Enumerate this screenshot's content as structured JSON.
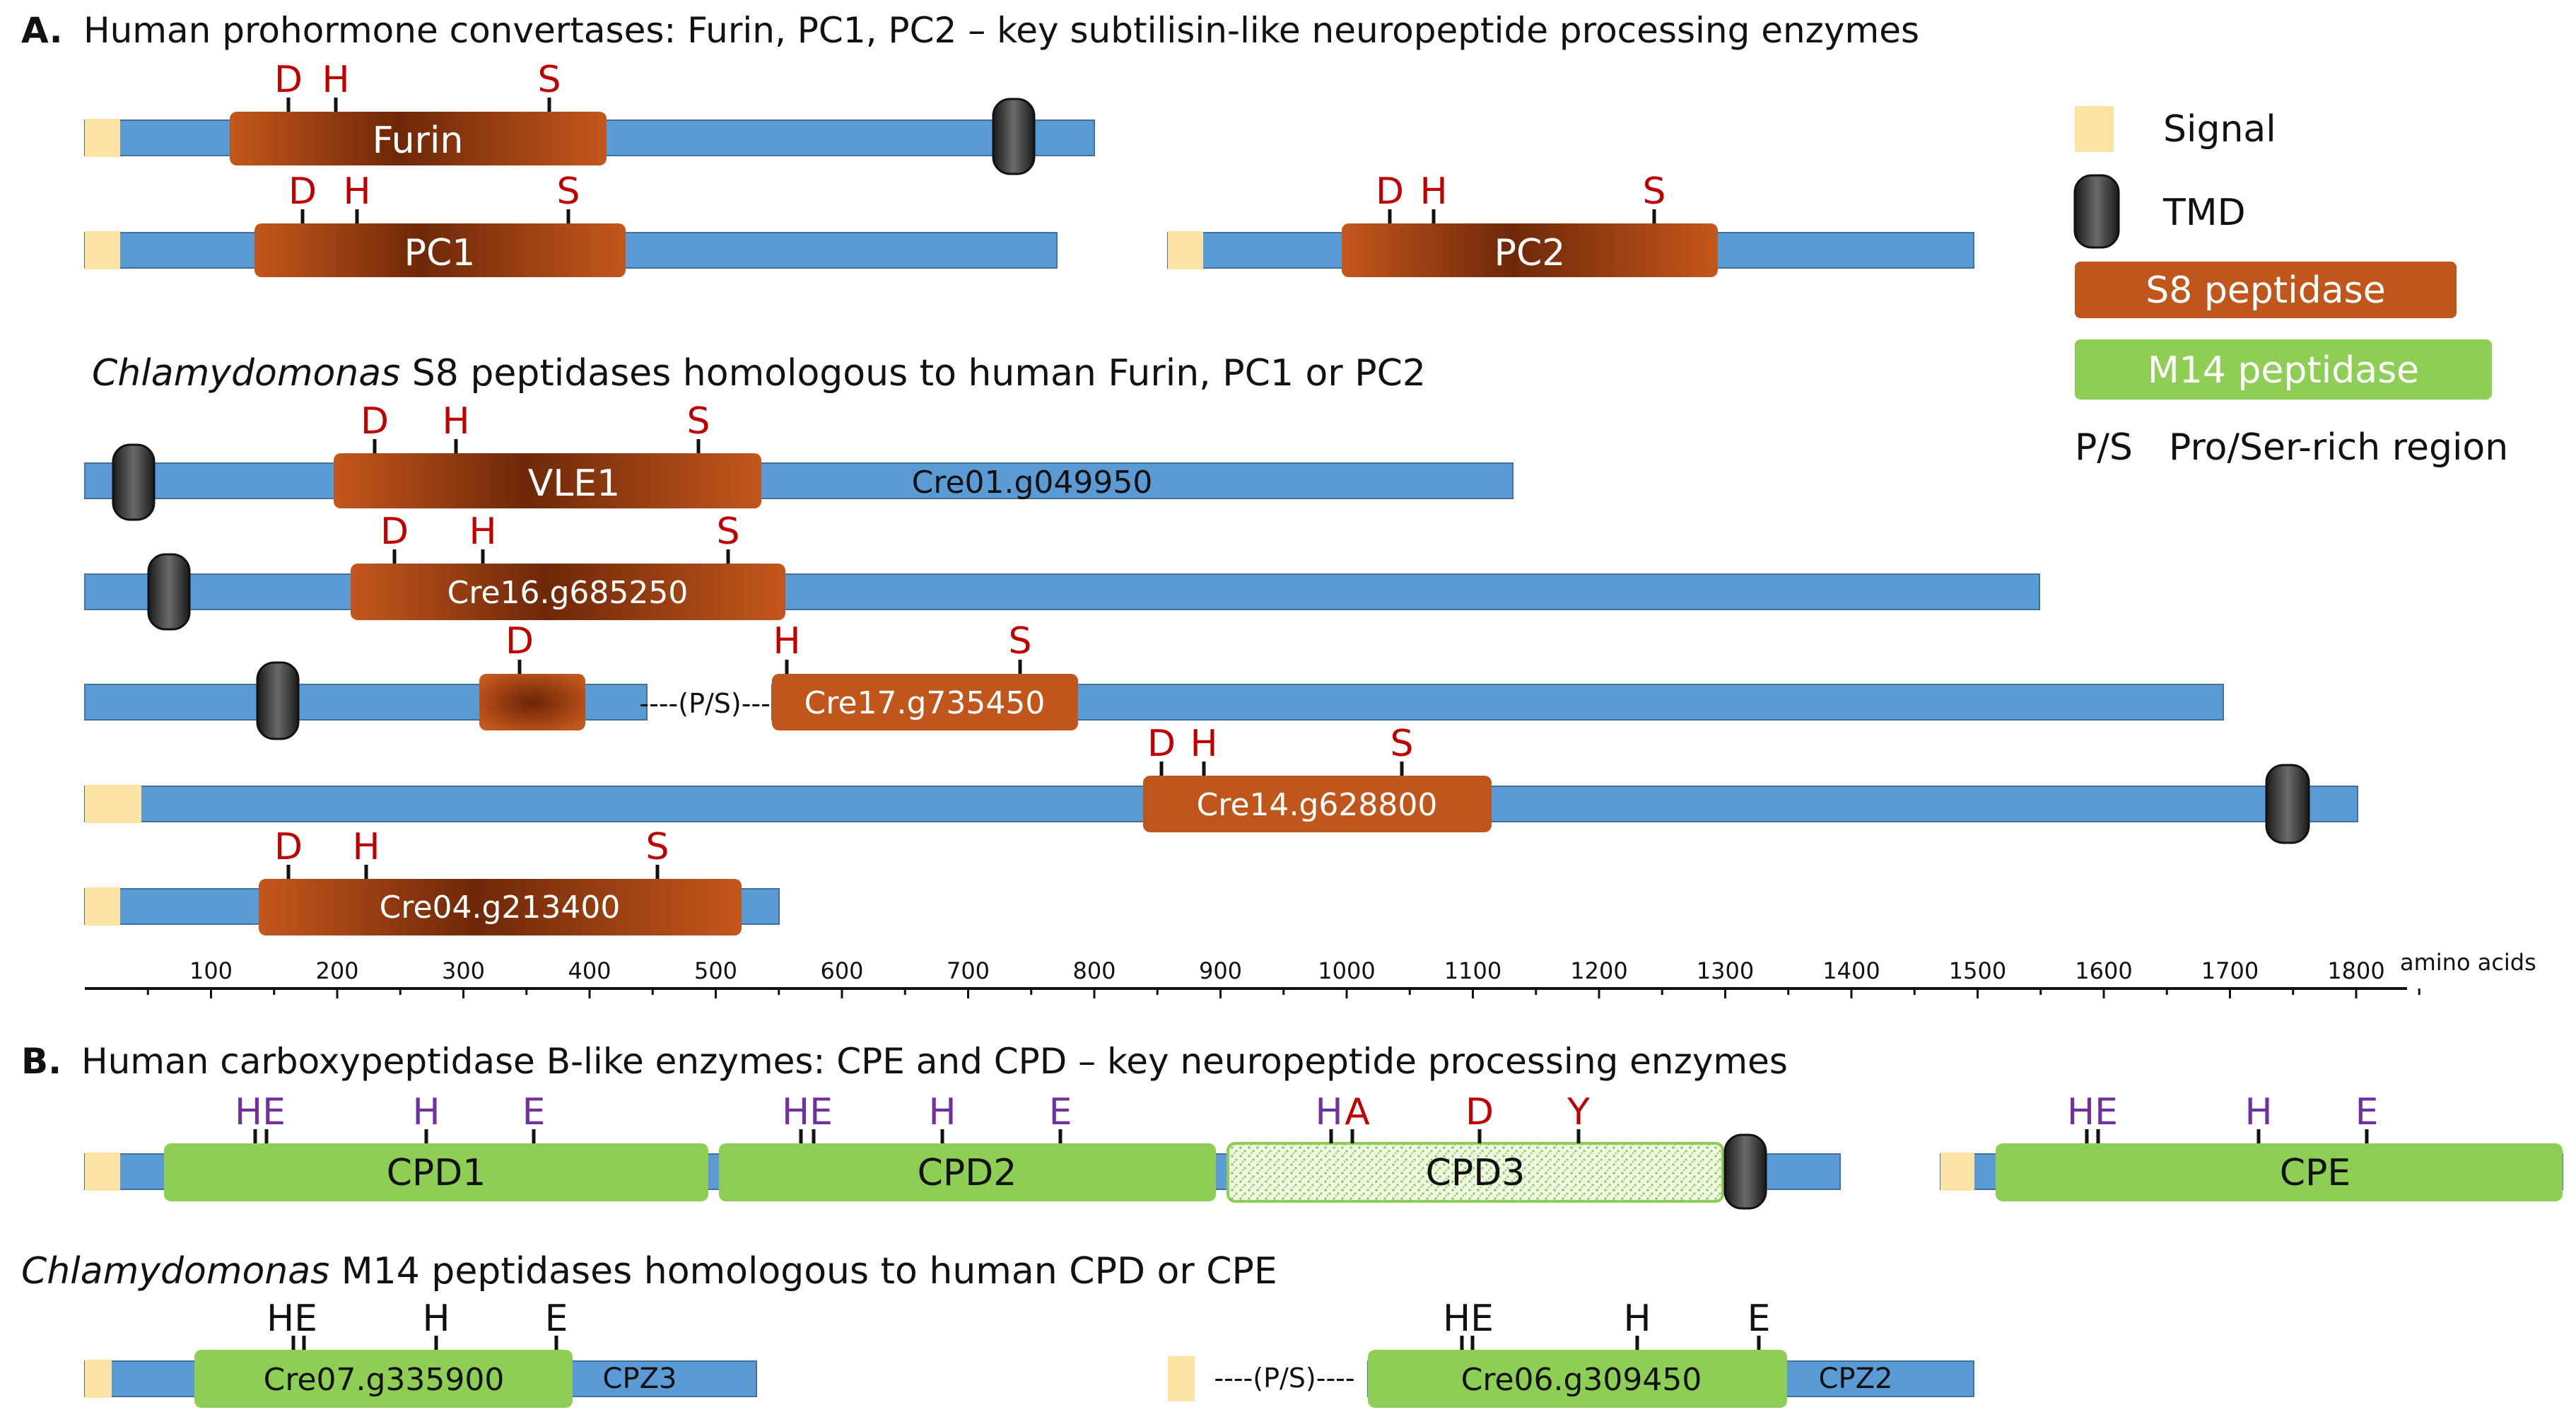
{
  "colors": {
    "backbone": "#5b9bd5",
    "signal": "#fde4a5",
    "s8": "#c0561c",
    "m14": "#8ece55",
    "tmd": "#2e2e2e",
    "residue_red": "#c00000",
    "residue_purple": "#7030a0",
    "residue_black": "#111111"
  },
  "sectionA": {
    "label": "A.",
    "title": "Human prohormone convertases: Furin, PC1, PC2 – key subtilisin-like neuropeptide processing enzymes",
    "subtitle_italic": "Chlamydomonas",
    "subtitle_rest": " S8 peptidases homologous to human Furin, PC1 or PC2"
  },
  "sectionB": {
    "label": "B.",
    "title": "Human carboxypeptidase B-like enzymes: CPE and CPD – key neuropeptide processing enzymes",
    "subtitle_italic": "Chlamydomonas",
    "subtitle_rest": " M14 peptidases homologous to human CPD or CPE"
  },
  "legend": {
    "signal": "Signal",
    "tmd": "TMD",
    "s8": "S8 peptidase",
    "m14": "M14 peptidase",
    "ps_abbr": "P/S",
    "ps_desc": "Pro/Ser-rich region"
  },
  "proteins": {
    "furin": {
      "domain": "Furin",
      "residues": [
        "D",
        "H",
        "S"
      ]
    },
    "pc1": {
      "domain": "PC1",
      "residues": [
        "D",
        "H",
        "S"
      ]
    },
    "pc2": {
      "domain": "PC2",
      "residues": [
        "D",
        "H",
        "S"
      ]
    },
    "vle1": {
      "domain": "VLE1",
      "gene": "Cre01.g049950",
      "residues": [
        "D",
        "H",
        "S"
      ]
    },
    "cre16": {
      "domain": "Cre16.g685250",
      "residues": [
        "D",
        "H",
        "S"
      ]
    },
    "cre17": {
      "domain": "Cre17.g735450",
      "linker": "----(P/S)----",
      "residues": [
        "D",
        "H",
        "S"
      ]
    },
    "cre14": {
      "domain": "Cre14.g628800",
      "residues": [
        "D",
        "H",
        "S"
      ]
    },
    "cre04": {
      "domain": "Cre04.g213400",
      "residues": [
        "D",
        "H",
        "S"
      ]
    },
    "cpd1": {
      "domain": "CPD1",
      "residues": [
        "HE",
        "H",
        "E"
      ]
    },
    "cpd2": {
      "domain": "CPD2",
      "residues": [
        "HE",
        "H",
        "E"
      ]
    },
    "cpd3": {
      "domain": "CPD3",
      "residues": [
        "H",
        "A",
        "D",
        "Y"
      ]
    },
    "cpe": {
      "domain": "CPE",
      "residues": [
        "HE",
        "H",
        "E"
      ]
    },
    "cre07": {
      "domain": "Cre07.g335900",
      "label": "CPZ3",
      "residues": [
        "HE",
        "H",
        "E"
      ]
    },
    "cre06": {
      "domain": "Cre06.g309450",
      "label": "CPZ2",
      "linker": "----(P/S)----",
      "residues": [
        "HE",
        "H",
        "E"
      ]
    }
  },
  "axis": {
    "ticks": [
      "100",
      "200",
      "300",
      "400",
      "500",
      "600",
      "700",
      "800",
      "900",
      "1000",
      "1100",
      "1200",
      "1300",
      "1400",
      "1500",
      "1600",
      "1700",
      "1800"
    ],
    "unit": "amino acids"
  }
}
